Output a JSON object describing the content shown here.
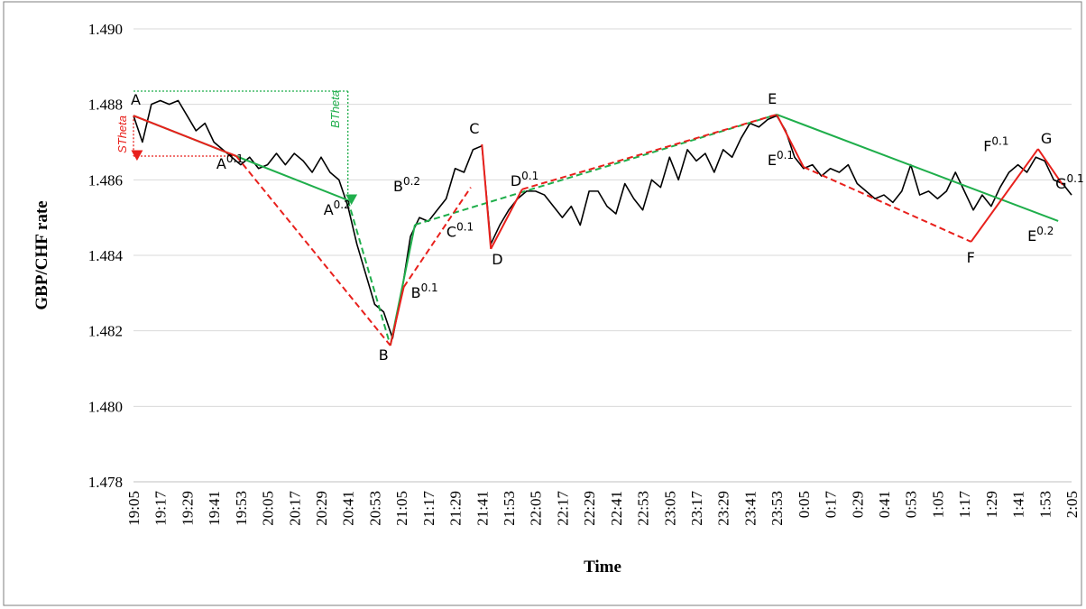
{
  "chart_data": {
    "type": "line",
    "x_label": "Time",
    "y_label": "GBP/CHF rate",
    "ylim": [
      1.478,
      1.49
    ],
    "yticks": [
      1.478,
      {
        "value": 1.48,
        "label": "1.480"
      },
      1.482,
      1.484,
      1.486,
      1.488,
      {
        "value": 1.49,
        "label": "1.490"
      }
    ],
    "grid": true,
    "color": "#000000",
    "categories": [
      "19:05",
      null,
      null,
      "19:17",
      null,
      null,
      "19:29",
      null,
      null,
      "19:41",
      null,
      null,
      "19:53",
      null,
      null,
      "20:05",
      null,
      null,
      "20:17",
      null,
      null,
      "20:29",
      null,
      null,
      "20:41",
      null,
      null,
      "20:53",
      null,
      null,
      "21:05",
      null,
      null,
      "21:17",
      null,
      null,
      "21:29",
      null,
      null,
      "21:41",
      null,
      null,
      "21:53",
      null,
      null,
      "22:05",
      null,
      null,
      "22:17",
      null,
      null,
      "22:29",
      null,
      null,
      "22:41",
      null,
      null,
      "22:53",
      null,
      null,
      "23:05",
      null,
      null,
      "23:17",
      null,
      null,
      "23:29",
      null,
      null,
      "23:41",
      null,
      null,
      "23:53",
      null,
      null,
      "0:05",
      null,
      null,
      "0:17",
      null,
      null,
      "0:29",
      null,
      null,
      "0:41",
      null,
      null,
      "0:53",
      null,
      null,
      "1:05",
      null,
      null,
      "1:17",
      null,
      null,
      "1:29",
      null,
      null,
      "1:41",
      null,
      null,
      "1:53",
      null,
      null,
      "2:05"
    ],
    "values": [
      1.4877,
      1.487,
      1.488,
      1.4881,
      1.488,
      1.4881,
      1.4877,
      1.4873,
      1.4875,
      1.487,
      1.4868,
      1.4866,
      1.4864,
      1.4866,
      1.4863,
      1.4864,
      1.4867,
      1.4864,
      1.4867,
      1.4865,
      1.4862,
      1.4866,
      1.4862,
      1.486,
      1.4853,
      1.4843,
      1.4835,
      1.4827,
      1.4825,
      1.4818,
      1.483,
      1.4845,
      1.485,
      1.4849,
      1.4852,
      1.4855,
      1.4863,
      1.4862,
      1.4868,
      1.4869,
      1.4843,
      1.4848,
      1.4852,
      1.4855,
      1.4857,
      1.4857,
      1.4856,
      1.4853,
      1.485,
      1.4853,
      1.4848,
      1.4857,
      1.4857,
      1.4853,
      1.4851,
      1.4859,
      1.4855,
      1.4852,
      1.486,
      1.4858,
      1.4866,
      1.486,
      1.4868,
      1.4865,
      1.4867,
      1.4862,
      1.4868,
      1.4866,
      1.4871,
      1.4875,
      1.4874,
      1.4876,
      1.4877,
      1.4873,
      1.4866,
      1.4863,
      1.4864,
      1.4861,
      1.4863,
      1.4862,
      1.4864,
      1.4859,
      1.4857,
      1.4855,
      1.4856,
      1.4854,
      1.4857,
      1.4864,
      1.4856,
      1.4857,
      1.4855,
      1.4857,
      1.4862,
      1.4857,
      1.4852,
      1.4856,
      1.4853,
      1.4858,
      1.4862,
      1.4864,
      1.4862,
      1.4866,
      1.4865,
      1.486,
      1.4859,
      1.4856
    ],
    "segments": [
      {
        "color": "#1fae4b",
        "style": "solid",
        "x": [
          "19:05",
          "20:41"
        ],
        "y": [
          1.4877,
          1.48546
        ]
      },
      {
        "color": "#1fae4b",
        "style": "dashed",
        "x": [
          "20:41",
          "21:00"
        ],
        "y": [
          1.48546,
          1.48161
        ]
      },
      {
        "color": "#1fae4b",
        "style": "solid",
        "x": [
          "21:00",
          "21:11"
        ],
        "y": [
          1.48161,
          1.48481
        ]
      },
      {
        "color": "#1fae4b",
        "style": "dashed",
        "x": [
          "21:11",
          "23:53"
        ],
        "y": [
          1.48481,
          1.48773
        ]
      },
      {
        "color": "#1fae4b",
        "style": "solid",
        "x": [
          "23:53",
          "1:59"
        ],
        "y": [
          1.48773,
          1.48491
        ]
      },
      {
        "color": "#e8201c",
        "style": "solid",
        "x": [
          "19:05",
          "19:51"
        ],
        "y": [
          1.4877,
          1.48663
        ]
      },
      {
        "color": "#e8201c",
        "style": "dashed",
        "x": [
          "19:51",
          "21:00"
        ],
        "y": [
          1.48663,
          1.48161
        ]
      },
      {
        "color": "#e8201c",
        "style": "solid",
        "x": [
          "21:00",
          "21:06"
        ],
        "y": [
          1.48161,
          1.48316
        ]
      },
      {
        "color": "#e8201c",
        "style": "dashed",
        "x": [
          "21:06",
          "21:36"
        ],
        "y": [
          1.48316,
          1.4858
        ]
      },
      {
        "color": "#e8201c",
        "style": "solid",
        "x": [
          "21:41",
          "21:45"
        ],
        "y": [
          1.48694,
          1.48417
        ]
      },
      {
        "color": "#e8201c",
        "style": "solid",
        "x": [
          "21:45",
          "21:59"
        ],
        "y": [
          1.48417,
          1.48575
        ]
      },
      {
        "color": "#e8201c",
        "style": "dashed",
        "x": [
          "21:59",
          "23:53"
        ],
        "y": [
          1.48575,
          1.48773
        ]
      },
      {
        "color": "#e8201c",
        "style": "solid",
        "x": [
          "23:53",
          "0:05"
        ],
        "y": [
          1.48773,
          1.48634
        ]
      },
      {
        "color": "#e8201c",
        "style": "dashed",
        "x": [
          "0:05",
          "1:20"
        ],
        "y": [
          1.48634,
          1.48436
        ]
      },
      {
        "color": "#e8201c",
        "style": "solid",
        "x": [
          "1:20",
          "1:50"
        ],
        "y": [
          1.48436,
          1.48682
        ]
      },
      {
        "color": "#e8201c",
        "style": "solid",
        "x": [
          "1:50",
          "2:01"
        ],
        "y": [
          1.48682,
          1.48587
        ]
      },
      {
        "color": "#e8201c",
        "style": "dotted",
        "arrow": true,
        "x": [
          "19:05",
          "19:05"
        ],
        "y": [
          1.4877,
          1.48663
        ]
      },
      {
        "color": "#e8201c",
        "style": "dotted",
        "x": [
          "19:05",
          "19:51"
        ],
        "y": [
          1.48663,
          1.48663
        ]
      },
      {
        "color": "#1fae4b",
        "style": "dotted",
        "x": [
          "19:05",
          "20:41"
        ],
        "y": [
          1.48835,
          1.48835
        ]
      },
      {
        "color": "#1fae4b",
        "style": "dotted",
        "arrow": true,
        "x": [
          "20:41",
          "20:41"
        ],
        "y": [
          1.48835,
          1.48546
        ]
      }
    ],
    "points": [
      {
        "label": "A",
        "x": "19:05",
        "y": 1.4877
      },
      {
        "label": "A",
        "sup": "0.1",
        "x": "19:51",
        "y": 1.48663
      },
      {
        "label": "A",
        "sup": "0.2",
        "x": "20:41",
        "y": 1.48546
      },
      {
        "label": "B",
        "x": "21:00",
        "y": 1.48161
      },
      {
        "label": "B",
        "sup": "0.1",
        "x": "21:06",
        "y": 1.48316
      },
      {
        "label": "B",
        "sup": "0.2",
        "x": "21:11",
        "y": 1.48481
      },
      {
        "label": "C",
        "x": "21:41",
        "y": 1.48694
      },
      {
        "label": "C",
        "sup": "0.1",
        "x": "21:36",
        "y": 1.4858
      },
      {
        "label": "D",
        "x": "21:45",
        "y": 1.48417
      },
      {
        "label": "D",
        "sup": "0.1",
        "x": "21:59",
        "y": 1.48575
      },
      {
        "label": "E",
        "x": "23:53",
        "y": 1.48773
      },
      {
        "label": "E",
        "sup": "0.1",
        "x": "0:05",
        "y": 1.48634
      },
      {
        "label": "F",
        "x": "1:20",
        "y": 1.48436
      },
      {
        "label": "F",
        "sup": "0.1",
        "x": "1:36",
        "y": 1.48566
      },
      {
        "label": "G",
        "x": "1:50",
        "y": 1.48682
      },
      {
        "label": "G",
        "sup": "0.1",
        "x": "2:01",
        "y": 1.48587
      },
      {
        "label": "E",
        "sup": "0.2",
        "x": "1:59",
        "y": 1.48491
      }
    ],
    "theta_labels": [
      {
        "text": "STheta",
        "color": "#e8201c"
      },
      {
        "text": "BTheta",
        "color": "#1fae4b"
      }
    ]
  }
}
